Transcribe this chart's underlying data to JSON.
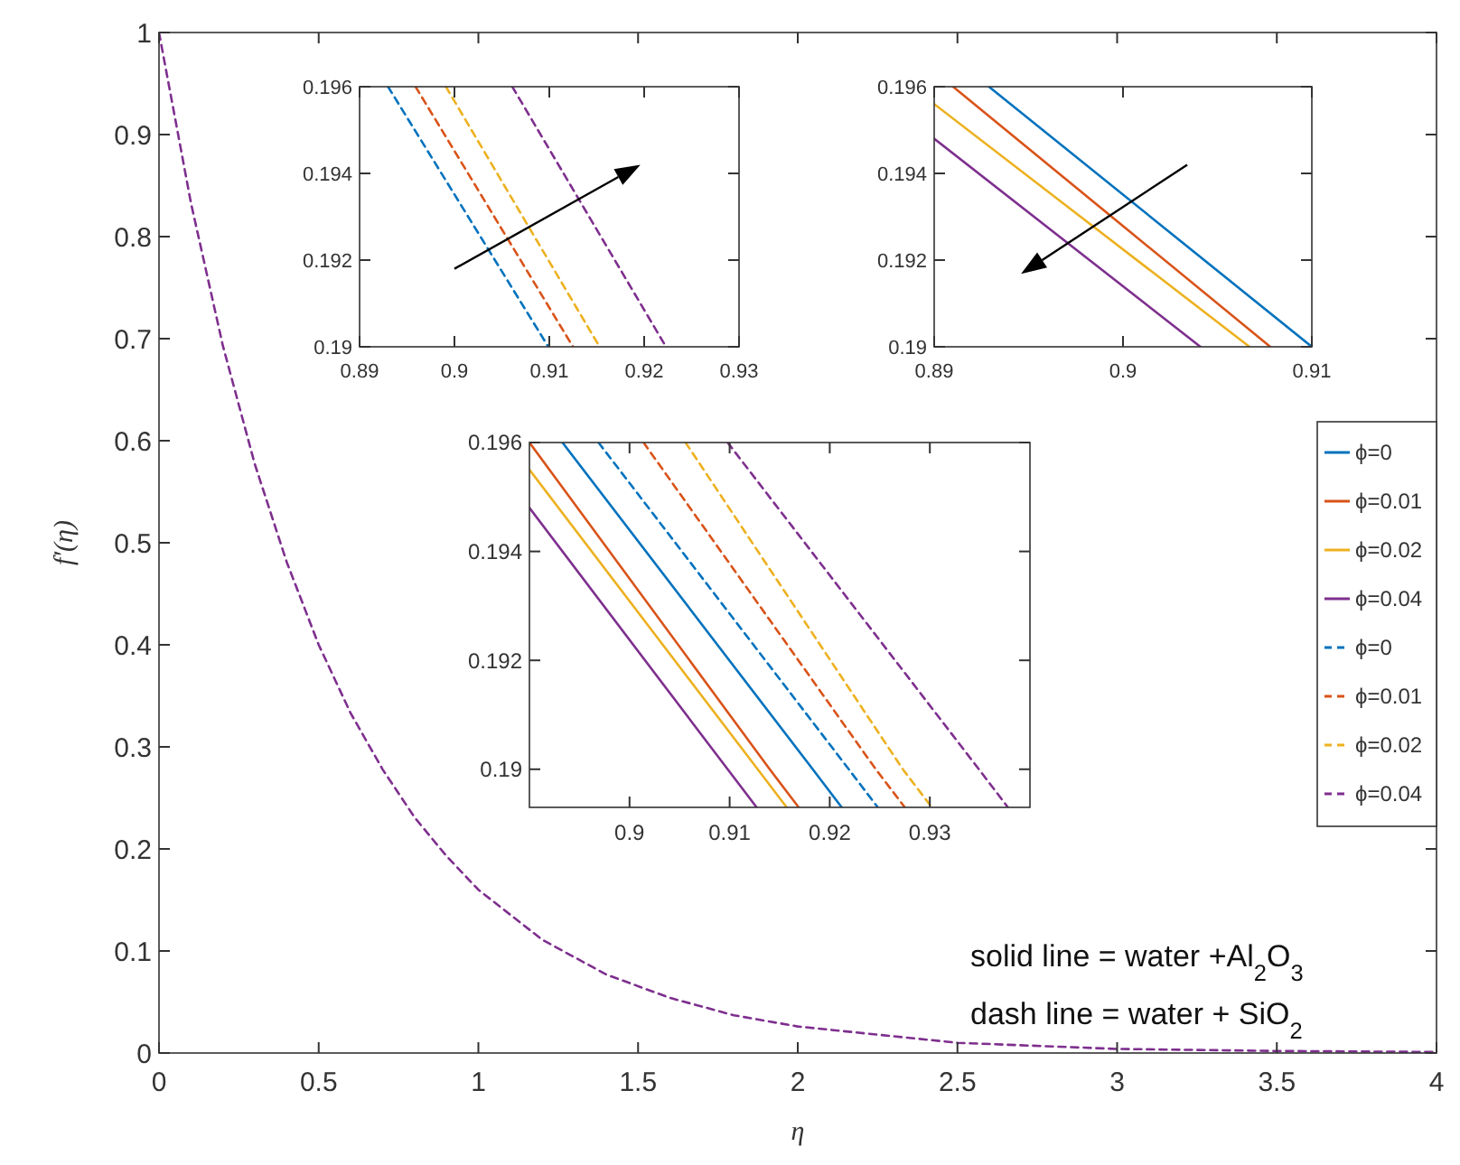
{
  "chart_data": [
    {
      "type": "line",
      "xlabel": "η",
      "ylabel": "f′(η)",
      "xlim": [
        0,
        4
      ],
      "ylim": [
        0,
        1
      ],
      "xticks": [
        0,
        0.5,
        1,
        1.5,
        2,
        2.5,
        3,
        3.5,
        4
      ],
      "yticks": [
        0,
        0.1,
        0.2,
        0.3,
        0.4,
        0.5,
        0.6,
        0.7,
        0.8,
        0.9,
        1
      ],
      "grid": false,
      "legend": "right",
      "x": [
        0,
        0.1,
        0.2,
        0.3,
        0.4,
        0.5,
        0.6,
        0.7,
        0.8,
        0.9,
        1,
        1.2,
        1.4,
        1.6,
        1.8,
        2,
        2.5,
        3,
        3.5,
        4
      ],
      "annotations": [
        "solid line = water +Al$_{2}$O$_{3}$",
        "dash line = water + SiO$_{2}$"
      ],
      "series": [
        {
          "name": "ϕ=0",
          "color": "#0072bd",
          "line_style": "solid",
          "values": [
            null,
            null,
            null,
            null,
            null,
            null,
            null,
            null,
            null,
            null,
            null,
            null,
            null,
            null,
            null,
            null,
            null,
            null,
            null,
            null
          ]
        },
        {
          "name": "ϕ=0.01",
          "color": "#d95319",
          "line_style": "solid",
          "values": [
            null,
            null,
            null,
            null,
            null,
            null,
            null,
            null,
            null,
            null,
            null,
            null,
            null,
            null,
            null,
            null,
            null,
            null,
            null,
            null
          ]
        },
        {
          "name": "ϕ=0.02",
          "color": "#edb120",
          "line_style": "solid",
          "values": [
            null,
            null,
            null,
            null,
            null,
            null,
            null,
            null,
            null,
            null,
            null,
            null,
            null,
            null,
            null,
            null,
            null,
            null,
            null,
            null
          ]
        },
        {
          "name": "ϕ=0.04",
          "color": "#7e2f8e",
          "line_style": "solid",
          "values": [
            null,
            null,
            null,
            null,
            null,
            null,
            null,
            null,
            null,
            null,
            null,
            null,
            null,
            null,
            null,
            null,
            null,
            null,
            null,
            null
          ]
        },
        {
          "name": "ϕ=0",
          "color": "#0072bd",
          "line_style": "dashed",
          "values": [
            null,
            null,
            null,
            null,
            null,
            null,
            null,
            null,
            null,
            null,
            null,
            null,
            null,
            null,
            null,
            null,
            null,
            null,
            null,
            null
          ]
        },
        {
          "name": "ϕ=0.01",
          "color": "#d95319",
          "line_style": "dashed",
          "values": [
            null,
            null,
            null,
            null,
            null,
            null,
            null,
            null,
            null,
            null,
            null,
            null,
            null,
            null,
            null,
            null,
            null,
            null,
            null,
            null
          ]
        },
        {
          "name": "ϕ=0.02",
          "color": "#edb120",
          "line_style": "dashed",
          "values": [
            null,
            null,
            null,
            null,
            null,
            null,
            null,
            null,
            null,
            null,
            null,
            null,
            null,
            null,
            null,
            null,
            null,
            null,
            null,
            null
          ]
        },
        {
          "name": "ϕ=0.04",
          "color": "#7e2f8e",
          "line_style": "dashed",
          "values": [
            1,
            0.833,
            0.693,
            0.577,
            0.481,
            0.4,
            0.333,
            0.278,
            0.231,
            0.193,
            0.16,
            0.111,
            0.077,
            0.054,
            0.037,
            0.026,
            0.01,
            0.004,
            0.002,
            0.001
          ]
        }
      ]
    },
    {
      "type": "line",
      "xlim": [
        0.89,
        0.93
      ],
      "ylim": [
        0.19,
        0.196
      ],
      "xticks": [
        0.89,
        0.9,
        0.91,
        0.92,
        0.93
      ],
      "yticks": [
        0.19,
        0.192,
        0.194,
        0.196
      ],
      "grid": false,
      "series": [
        {
          "color": "#0072bd",
          "line_style": "dashed",
          "x": [
            0.893,
            0.9099
          ],
          "values": [
            0.196,
            0.19
          ]
        },
        {
          "color": "#d95319",
          "line_style": "dashed",
          "x": [
            0.8959,
            0.9125
          ],
          "values": [
            0.196,
            0.19
          ]
        },
        {
          "color": "#edb120",
          "line_style": "dashed",
          "x": [
            0.8991,
            0.9153
          ],
          "values": [
            0.196,
            0.19
          ]
        },
        {
          "color": "#7e2f8e",
          "line_style": "dashed",
          "x": [
            0.9061,
            0.9223
          ],
          "values": [
            0.196,
            0.19
          ]
        }
      ]
    },
    {
      "type": "line",
      "xlim": [
        0.89,
        0.91
      ],
      "ylim": [
        0.19,
        0.196
      ],
      "xticks": [
        0.89,
        0.9,
        0.91
      ],
      "yticks": [
        0.19,
        0.192,
        0.194,
        0.196
      ],
      "grid": false,
      "series": [
        {
          "color": "#0072bd",
          "line_style": "solid",
          "x": [
            0.8929,
            0.91
          ],
          "values": [
            0.196,
            0.19
          ]
        },
        {
          "color": "#d95319",
          "line_style": "solid",
          "x": [
            0.891,
            0.9078
          ],
          "values": [
            0.196,
            0.19
          ]
        },
        {
          "color": "#edb120",
          "line_style": "solid",
          "x": [
            0.89,
            0.9067
          ],
          "values": [
            0.1956,
            0.19
          ]
        },
        {
          "color": "#7e2f8e",
          "line_style": "solid",
          "x": [
            0.89,
            0.9041
          ],
          "values": [
            0.1948,
            0.19
          ]
        }
      ]
    },
    {
      "type": "line",
      "xlim": [
        0.89,
        0.94
      ],
      "ylim": [
        0.1893,
        0.196
      ],
      "xticks": [
        0.9,
        0.91,
        0.92,
        0.93
      ],
      "yticks": [
        0.19,
        0.192,
        0.194,
        0.196
      ],
      "grid": false,
      "series": [
        {
          "color": "#0072bd",
          "line_style": "solid",
          "x": [
            0.8933,
            0.9183,
            0.9212
          ],
          "values": [
            0.196,
            0.19,
            0.1893
          ]
        },
        {
          "color": "#d95319",
          "line_style": "solid",
          "x": [
            0.89,
            0.914,
            0.9169
          ],
          "values": [
            0.196,
            0.19,
            0.1893
          ]
        },
        {
          "color": "#edb120",
          "line_style": "solid",
          "x": [
            0.89,
            0.9128,
            0.9157
          ],
          "values": [
            0.1955,
            0.19,
            0.1893
          ]
        },
        {
          "color": "#7e2f8e",
          "line_style": "solid",
          "x": [
            0.89,
            0.9098,
            0.9127
          ],
          "values": [
            0.1948,
            0.19,
            0.1893
          ]
        },
        {
          "color": "#0072bd",
          "line_style": "dashed",
          "x": [
            0.8969,
            0.9219,
            0.9248
          ],
          "values": [
            0.196,
            0.19,
            0.1893
          ]
        },
        {
          "color": "#d95319",
          "line_style": "dashed",
          "x": [
            0.9014,
            0.9246,
            0.9275
          ],
          "values": [
            0.196,
            0.19,
            0.1893
          ]
        },
        {
          "color": "#edb120",
          "line_style": "dashed",
          "x": [
            0.9056,
            0.9273,
            0.9302
          ],
          "values": [
            0.196,
            0.19,
            0.1893
          ]
        },
        {
          "color": "#7e2f8e",
          "line_style": "dashed",
          "x": [
            0.9098,
            0.9349,
            0.9378
          ],
          "values": [
            0.196,
            0.19,
            0.1893
          ]
        }
      ]
    }
  ]
}
